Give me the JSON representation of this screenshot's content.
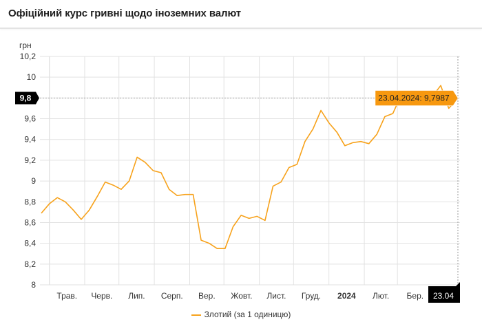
{
  "header": {
    "title": "Офіційний курс гривні щодо іноземних валют"
  },
  "colors": {
    "series": "#f7a21b",
    "tooltip_bg": "#f7980f",
    "grid": "#e2e2e2",
    "marker_bg": "#000000"
  },
  "chart_data": {
    "type": "line",
    "title": "",
    "ylabel": "грн",
    "xlabel": "",
    "ylim": [
      8,
      10.2
    ],
    "xlim": [
      "2023-04-24",
      "2024-04-23"
    ],
    "yticks": [
      8,
      8.2,
      8.4,
      8.6,
      8.8,
      9,
      9.2,
      9.4,
      9.6,
      9.8,
      10,
      10.2
    ],
    "ytick_labels": [
      "8",
      "8,2",
      "8,4",
      "8,6",
      "8,8",
      "9",
      "9,2",
      "9,4",
      "9,6",
      "9,8",
      "10",
      "10,2"
    ],
    "xtick_labels": [
      {
        "label": "Трав.",
        "month": "2023-05"
      },
      {
        "label": "Черв.",
        "month": "2023-06"
      },
      {
        "label": "Лип.",
        "month": "2023-07"
      },
      {
        "label": "Серп.",
        "month": "2023-08"
      },
      {
        "label": "Вер.",
        "month": "2023-09"
      },
      {
        "label": "Жовт.",
        "month": "2023-10"
      },
      {
        "label": "Лист.",
        "month": "2023-11"
      },
      {
        "label": "Груд.",
        "month": "2023-12"
      },
      {
        "label": "2024",
        "month": "2024-01",
        "bold": true
      },
      {
        "label": "Лют.",
        "month": "2024-02"
      },
      {
        "label": "Бер.",
        "month": "2024-03"
      }
    ],
    "grid": true,
    "legend_position": "bottom",
    "series": [
      {
        "name": "Злотий (за 1 одиницю)",
        "x": [
          "2023-04-24",
          "2023-05-01",
          "2023-05-08",
          "2023-05-15",
          "2023-05-22",
          "2023-05-29",
          "2023-06-05",
          "2023-06-12",
          "2023-06-19",
          "2023-06-26",
          "2023-07-03",
          "2023-07-10",
          "2023-07-17",
          "2023-07-24",
          "2023-07-31",
          "2023-08-07",
          "2023-08-14",
          "2023-08-21",
          "2023-08-28",
          "2023-09-04",
          "2023-09-11",
          "2023-09-18",
          "2023-09-25",
          "2023-10-02",
          "2023-10-09",
          "2023-10-16",
          "2023-10-23",
          "2023-10-30",
          "2023-11-06",
          "2023-11-13",
          "2023-11-20",
          "2023-11-27",
          "2023-12-04",
          "2023-12-11",
          "2023-12-18",
          "2023-12-25",
          "2024-01-01",
          "2024-01-08",
          "2024-01-15",
          "2024-01-22",
          "2024-01-29",
          "2024-02-05",
          "2024-02-12",
          "2024-02-19",
          "2024-02-26",
          "2024-03-04",
          "2024-03-11",
          "2024-03-18",
          "2024-03-25",
          "2024-04-01",
          "2024-04-08",
          "2024-04-15",
          "2024-04-23"
        ],
        "y": [
          8.69,
          8.78,
          8.84,
          8.8,
          8.72,
          8.63,
          8.72,
          8.85,
          8.99,
          8.96,
          8.92,
          9.0,
          9.23,
          9.18,
          9.1,
          9.08,
          8.92,
          8.86,
          8.87,
          8.87,
          8.43,
          8.4,
          8.35,
          8.35,
          8.56,
          8.67,
          8.64,
          8.66,
          8.62,
          8.95,
          8.99,
          9.13,
          9.16,
          9.38,
          9.5,
          9.68,
          9.56,
          9.47,
          9.34,
          9.37,
          9.38,
          9.36,
          9.45,
          9.62,
          9.65,
          9.82,
          9.82,
          9.84,
          9.83,
          9.82,
          9.92,
          9.7,
          9.7987
        ]
      }
    ],
    "crosshair": {
      "date_label": "23.04",
      "value_label": "9,8"
    },
    "tooltip": {
      "text": "23.04.2024: 9,7987"
    }
  }
}
